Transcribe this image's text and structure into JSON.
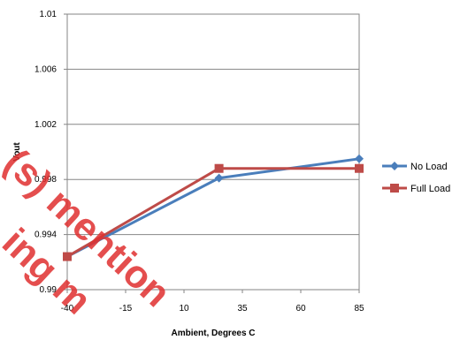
{
  "chart_data": {
    "type": "line",
    "title": "",
    "xlabel": "Ambient, Degrees C",
    "ylabel": "Vout",
    "x_ticks": [
      "-40",
      "-15",
      "10",
      "35",
      "60",
      "85"
    ],
    "y_ticks": [
      "0.99",
      "0.994",
      "0.998",
      "1.002",
      "1.006",
      "1.01"
    ],
    "xlim": [
      -40,
      85
    ],
    "ylim": [
      0.99,
      1.01
    ],
    "grid": "horizontal",
    "legend_position": "right",
    "x": [
      -40,
      25,
      85
    ],
    "series": [
      {
        "name": "No Load",
        "values": [
          0.9924,
          0.9981,
          0.9995
        ],
        "color": "#4a7ebb",
        "marker": "diamond"
      },
      {
        "name": "Full Load",
        "values": [
          0.9924,
          0.9988,
          0.9988
        ],
        "color": "#be4b48",
        "marker": "square"
      }
    ]
  },
  "watermark": {
    "lines": [
      "(s) mention",
      "ing m"
    ],
    "color": "#e03030"
  }
}
